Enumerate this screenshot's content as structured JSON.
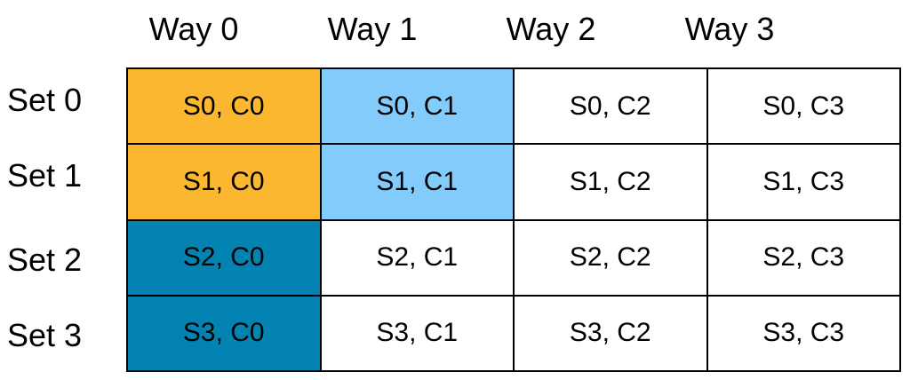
{
  "table": {
    "columns": [
      "Way 0",
      "Way 1",
      "Way 2",
      "Way 3"
    ],
    "rows": [
      {
        "label": "Set 0",
        "cells": [
          "S0, C0",
          "S0, C1",
          "S0, C2",
          "S0, C3"
        ]
      },
      {
        "label": "Set 1",
        "cells": [
          "S1, C0",
          "S1, C1",
          "S1, C2",
          "S1, C3"
        ]
      },
      {
        "label": "Set 2",
        "cells": [
          "S2, C0",
          "S2, C1",
          "S2, C2",
          "S2, C3"
        ]
      },
      {
        "label": "Set 3",
        "cells": [
          "S3, C0",
          "S3, C1",
          "S3, C2",
          "S3, C3"
        ]
      }
    ]
  }
}
